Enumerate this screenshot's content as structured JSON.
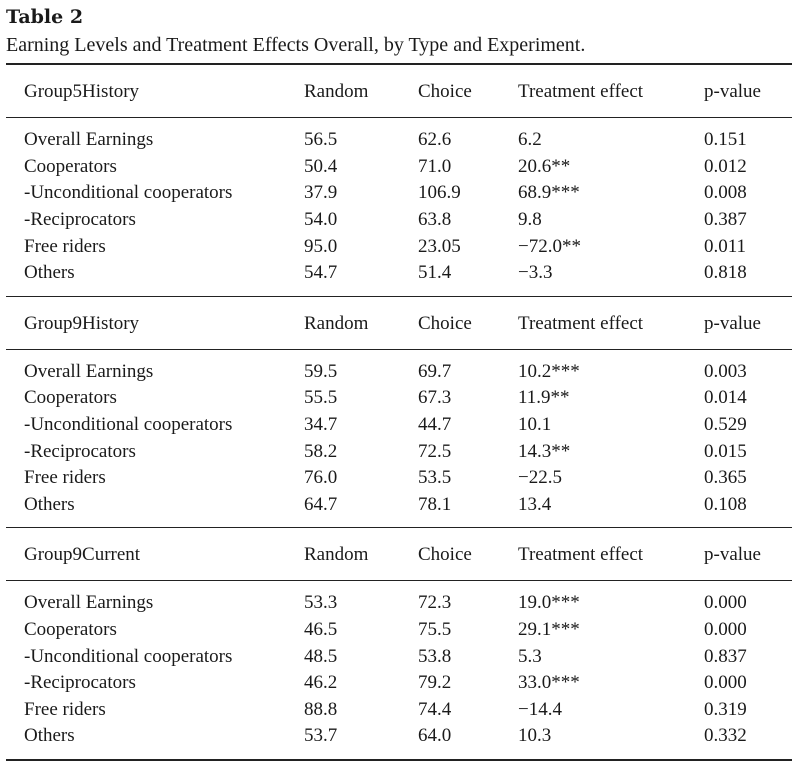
{
  "table_label": "Table 2",
  "caption": "Earning Levels and Treatment Effects Overall, by Type and Experiment.",
  "columns": [
    "Random",
    "Choice",
    "Treatment effect",
    "p-value"
  ],
  "panels": [
    {
      "name": "Group5History",
      "rows": [
        {
          "label": "Overall Earnings",
          "random": "56.5",
          "choice": "62.6",
          "effect": "6.2",
          "p": "0.151"
        },
        {
          "label": "Cooperators",
          "random": "50.4",
          "choice": "71.0",
          "effect": "20.6**",
          "p": "0.012"
        },
        {
          "label": "-Unconditional cooperators",
          "random": "37.9",
          "choice": "106.9",
          "effect": "68.9***",
          "p": "0.008"
        },
        {
          "label": "-Reciprocators",
          "random": "54.0",
          "choice": "63.8",
          "effect": "9.8",
          "p": "0.387"
        },
        {
          "label": "Free riders",
          "random": "95.0",
          "choice": "23.05",
          "effect": "−72.0**",
          "p": "0.011"
        },
        {
          "label": "Others",
          "random": "54.7",
          "choice": "51.4",
          "effect": "−3.3",
          "p": "0.818"
        }
      ]
    },
    {
      "name": "Group9History",
      "rows": [
        {
          "label": "Overall Earnings",
          "random": "59.5",
          "choice": "69.7",
          "effect": "10.2***",
          "p": "0.003"
        },
        {
          "label": "Cooperators",
          "random": "55.5",
          "choice": "67.3",
          "effect": "11.9**",
          "p": "0.014"
        },
        {
          "label": "-Unconditional cooperators",
          "random": "34.7",
          "choice": "44.7",
          "effect": "10.1",
          "p": "0.529"
        },
        {
          "label": "-Reciprocators",
          "random": "58.2",
          "choice": "72.5",
          "effect": "14.3**",
          "p": "0.015"
        },
        {
          "label": "Free riders",
          "random": "76.0",
          "choice": "53.5",
          "effect": "−22.5",
          "p": "0.365"
        },
        {
          "label": "Others",
          "random": "64.7",
          "choice": "78.1",
          "effect": "13.4",
          "p": "0.108"
        }
      ]
    },
    {
      "name": "Group9Current",
      "rows": [
        {
          "label": "Overall Earnings",
          "random": "53.3",
          "choice": "72.3",
          "effect": "19.0***",
          "p": "0.000"
        },
        {
          "label": "Cooperators",
          "random": "46.5",
          "choice": "75.5",
          "effect": "29.1***",
          "p": "0.000"
        },
        {
          "label": "-Unconditional cooperators",
          "random": "48.5",
          "choice": "53.8",
          "effect": "5.3",
          "p": "0.837"
        },
        {
          "label": "-Reciprocators",
          "random": "46.2",
          "choice": "79.2",
          "effect": "33.0***",
          "p": "0.000"
        },
        {
          "label": "Free riders",
          "random": "88.8",
          "choice": "74.4",
          "effect": "−14.4",
          "p": "0.319"
        },
        {
          "label": "Others",
          "random": "53.7",
          "choice": "64.0",
          "effect": "10.3",
          "p": "0.332"
        }
      ]
    }
  ]
}
